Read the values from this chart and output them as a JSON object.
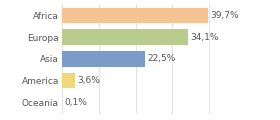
{
  "categories": [
    "Africa",
    "Europa",
    "Asia",
    "America",
    "Oceania"
  ],
  "values": [
    39.7,
    34.1,
    22.5,
    3.6,
    0.1
  ],
  "labels": [
    "39,7%",
    "34,1%",
    "22,5%",
    "3,6%",
    "0,1%"
  ],
  "bar_colors": [
    "#f5c492",
    "#b8cc8e",
    "#7b9bc8",
    "#f0d87a",
    "#dddddd"
  ],
  "background_color": "#ffffff",
  "xlim": [
    0,
    50
  ],
  "bar_height": 0.72,
  "label_fontsize": 6.5,
  "tick_fontsize": 6.5,
  "grid_color": "#dddddd",
  "text_color": "#555555"
}
